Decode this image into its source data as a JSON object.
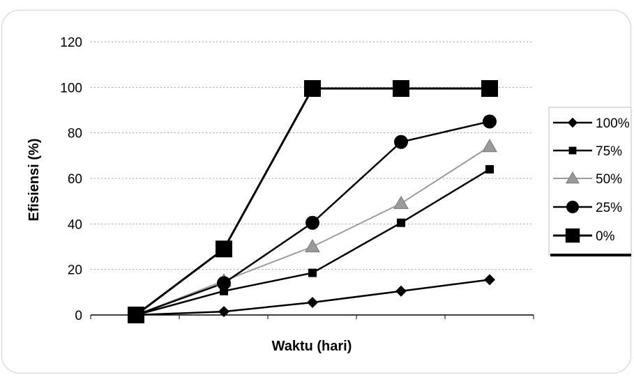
{
  "chart_data": {
    "type": "line",
    "title": "",
    "xlabel": "Waktu (hari)",
    "ylabel": "Efisiensi (%)",
    "ylim": [
      0,
      120
    ],
    "yticks": [
      "0",
      "20",
      "40",
      "60",
      "80",
      "100",
      "120"
    ],
    "x": [
      0,
      1,
      2,
      3,
      4
    ],
    "grid": "horizontal dashed",
    "legend_position": "right",
    "series": [
      {
        "name": "100%",
        "marker": "diamond",
        "color": "#000000",
        "values": [
          0,
          1.5,
          5.5,
          10.5,
          15.5
        ]
      },
      {
        "name": "75%",
        "marker": "square-small",
        "color": "#000000",
        "values": [
          0,
          10.5,
          18.5,
          40.5,
          64
        ]
      },
      {
        "name": "50%",
        "marker": "triangle",
        "color": "#9a9a9a",
        "values": [
          0,
          15,
          30,
          49,
          74
        ]
      },
      {
        "name": "25%",
        "marker": "circle",
        "color": "#000000",
        "values": [
          0,
          14,
          40.5,
          76,
          85
        ]
      },
      {
        "name": "0%",
        "marker": "square-large",
        "color": "#000000",
        "values": [
          0,
          29,
          99.5,
          99.5,
          99.5
        ]
      }
    ]
  }
}
